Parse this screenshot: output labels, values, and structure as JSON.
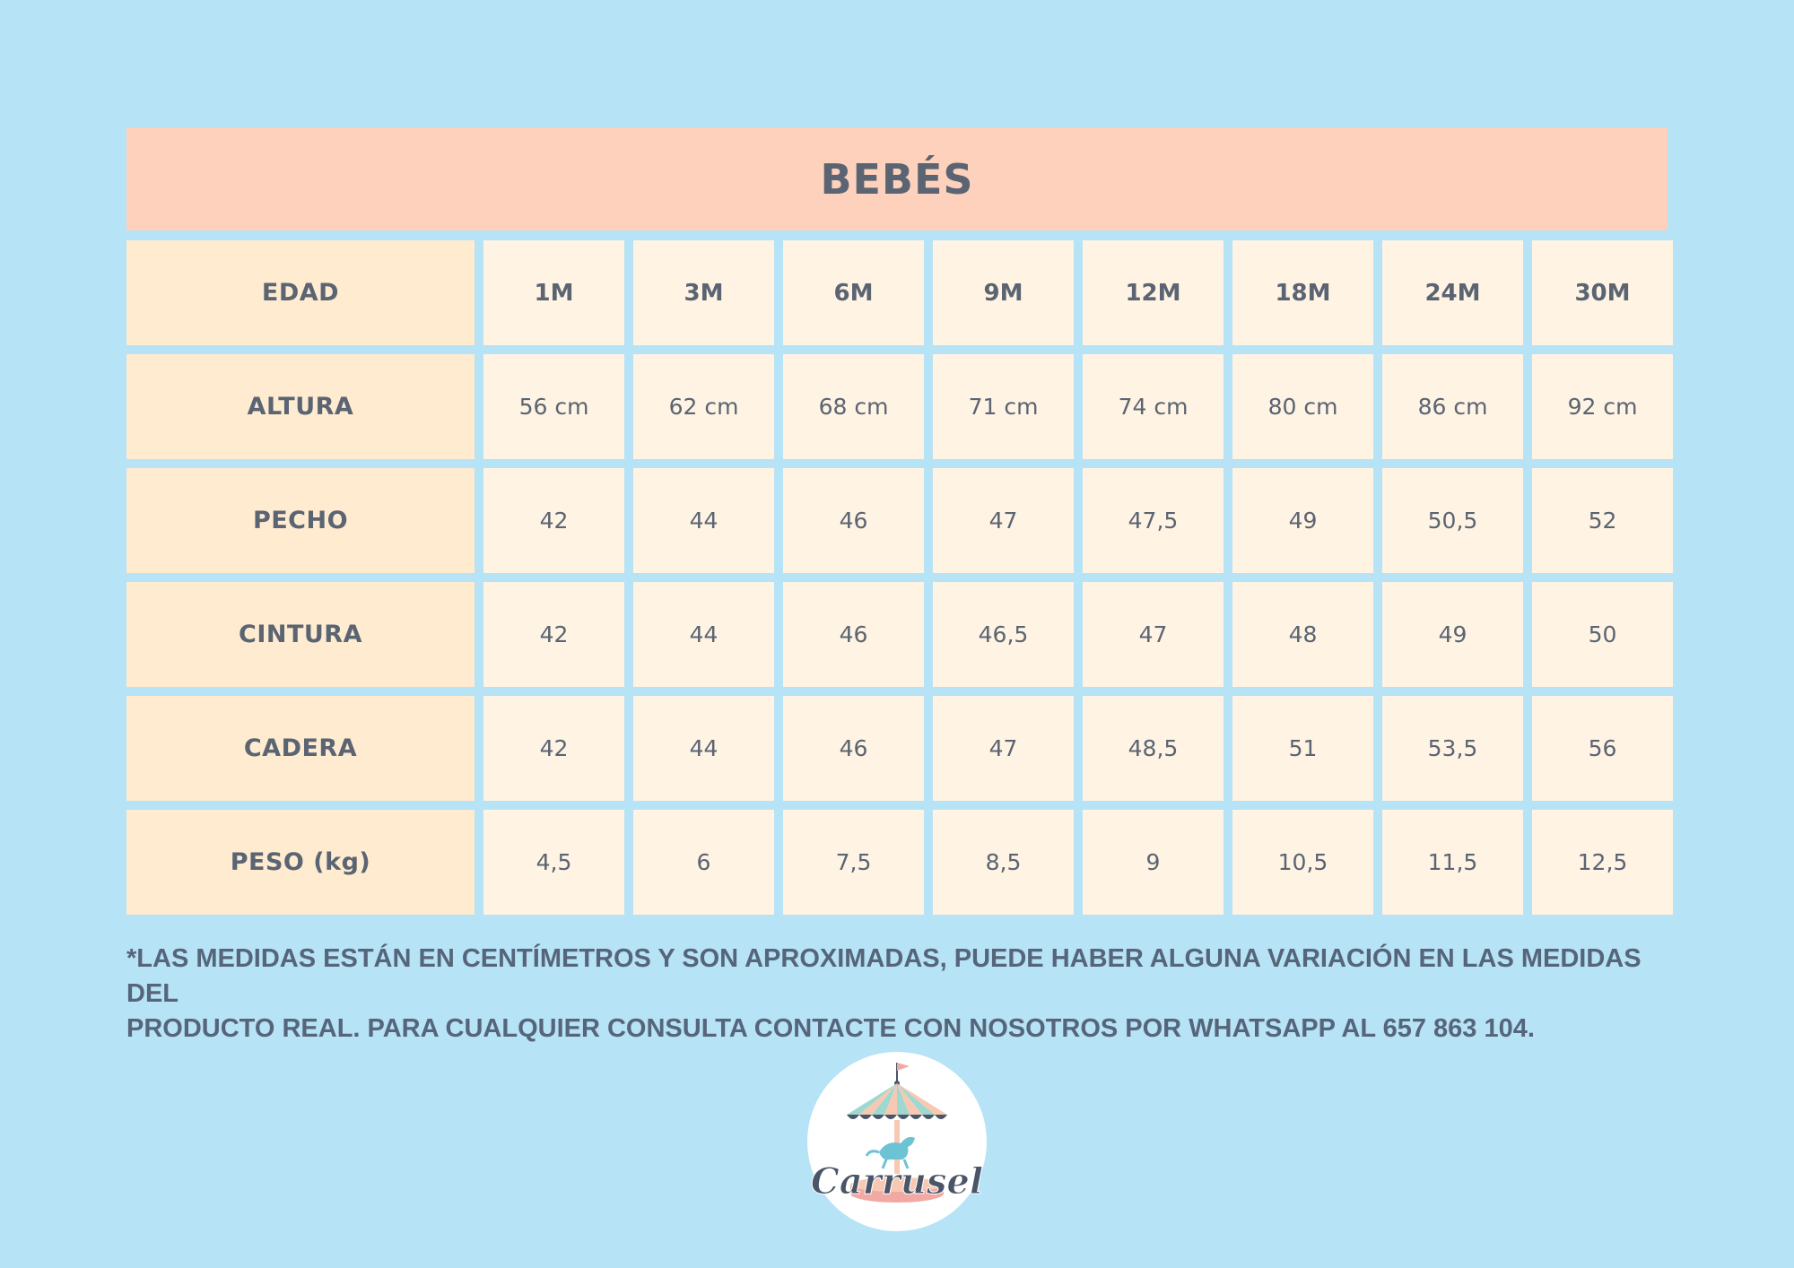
{
  "title": "BEBÉS",
  "table": {
    "header_label": "EDAD",
    "sizes": [
      "1M",
      "3M",
      "6M",
      "9M",
      "12M",
      "18M",
      "24M",
      "30M"
    ],
    "rows": [
      {
        "label": "ALTURA",
        "values": [
          "56 cm",
          "62 cm",
          "68 cm",
          "71 cm",
          "74 cm",
          "80 cm",
          "86 cm",
          "92 cm"
        ]
      },
      {
        "label": "PECHO",
        "values": [
          "42",
          "44",
          "46",
          "47",
          "47,5",
          "49",
          "50,5",
          "52"
        ]
      },
      {
        "label": "CINTURA",
        "values": [
          "42",
          "44",
          "46",
          "46,5",
          "47",
          "48",
          "49",
          "50"
        ]
      },
      {
        "label": "CADERA",
        "values": [
          "42",
          "44",
          "46",
          "47",
          "48,5",
          "51",
          "53,5",
          "56"
        ]
      },
      {
        "label": "PESO (kg)",
        "values": [
          "4,5",
          "6",
          "7,5",
          "8,5",
          "9",
          "10,5",
          "11,5",
          "12,5"
        ]
      }
    ]
  },
  "note": {
    "line1": "*LAS MEDIDAS ESTÁN EN CENTÍMETROS Y SON APROXIMADAS, PUEDE HABER ALGUNA VARIACIÓN EN LAS MEDIDAS DEL",
    "line2": "PRODUCTO REAL. PARA CUALQUIER CONSULTA CONTACTE CON NOSOTROS POR WHATSAPP AL 657 863 104."
  },
  "logo": {
    "text": "Carrusel",
    "icon": "carousel-icon",
    "colors": {
      "text": "#4a5568",
      "stripe_a": "#9ed8cf",
      "stripe_b": "#f7c9b3",
      "base": "#f2a9a4",
      "horse": "#6cc3d4"
    }
  }
}
